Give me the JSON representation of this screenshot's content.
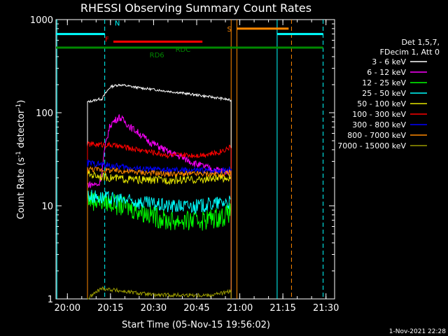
{
  "chart_data": {
    "type": "line",
    "title": "RHESSI Observing Summary Count Rates",
    "xlabel": "Start Time (05-Nov-15 19:56:02)",
    "ylabel": "Count Rate (s",
    "ylabel_sup": "-1",
    "ylabel_tail": " detector",
    "ylabel_sup2": "-1",
    "ylabel_close": ")",
    "footer": "1-Nov-2021 22:28",
    "y_scale": "log",
    "xlim": [
      "19:56:02",
      "21:33:00"
    ],
    "ylim": [
      1,
      1000
    ],
    "x_ticks": [
      "20:00",
      "20:15",
      "20:30",
      "20:45",
      "21:00",
      "21:15",
      "21:30"
    ],
    "y_ticks": [
      "1",
      "10",
      "100",
      "1000"
    ],
    "legend_header": [
      "Det 1,5,7,",
      "FDecim 1, Att 0"
    ],
    "legend_position": "right",
    "series": [
      {
        "name": "3 - 6 keV",
        "color": "#ffffff",
        "x": [
          "20:07",
          "20:11",
          "20:12",
          "20:15",
          "20:18",
          "20:25",
          "20:35",
          "20:45",
          "20:55",
          "20:57"
        ],
        "y": [
          130,
          140,
          140,
          190,
          200,
          185,
          170,
          155,
          140,
          135
        ]
      },
      {
        "name": "6 - 12 keV",
        "color": "#ff00ff",
        "x": [
          "20:07",
          "20:11",
          "20:12",
          "20:15",
          "20:18",
          "20:22",
          "20:28",
          "20:35",
          "20:45",
          "20:50",
          "20:57"
        ],
        "y": [
          17,
          17,
          22,
          75,
          90,
          70,
          50,
          38,
          28,
          25,
          23
        ]
      },
      {
        "name": "12 - 25 keV",
        "color": "#00ff00",
        "x": [
          "20:07",
          "20:15",
          "20:25",
          "20:35",
          "20:45",
          "20:55",
          "20:57"
        ],
        "y": [
          12,
          11,
          9,
          7,
          7,
          8,
          9
        ]
      },
      {
        "name": "25 - 50 keV",
        "color": "#00ffff",
        "x": [
          "20:07",
          "20:15",
          "20:25",
          "20:35",
          "20:45",
          "20:55",
          "20:57"
        ],
        "y": [
          13,
          12,
          11,
          10,
          10,
          11,
          11
        ]
      },
      {
        "name": "50 - 100 keV",
        "color": "#e6e600",
        "x": [
          "20:07",
          "20:15",
          "20:25",
          "20:35",
          "20:45",
          "20:55",
          "20:57"
        ],
        "y": [
          22,
          20,
          19,
          19,
          19,
          20,
          20
        ]
      },
      {
        "name": "100 - 300 keV",
        "color": "#ff0000",
        "x": [
          "20:07",
          "20:15",
          "20:25",
          "20:35",
          "20:45",
          "20:52",
          "20:57"
        ],
        "y": [
          46,
          45,
          40,
          35,
          35,
          37,
          43
        ]
      },
      {
        "name": "300 - 800 keV",
        "color": "#0000ff",
        "x": [
          "20:07",
          "20:15",
          "20:25",
          "20:35",
          "20:45",
          "20:55",
          "20:57"
        ],
        "y": [
          29,
          27,
          25,
          24,
          24,
          24,
          25
        ]
      },
      {
        "name": "800 - 7000 keV",
        "color": "#ff8800",
        "x": [
          "20:07",
          "20:15",
          "20:25",
          "20:35",
          "20:45",
          "20:55",
          "20:57"
        ],
        "y": [
          25,
          24,
          23,
          22,
          22,
          22,
          23
        ]
      },
      {
        "name": "7000 - 15000 keV",
        "color": "#999900",
        "x": [
          "20:07",
          "20:12",
          "20:20",
          "20:30",
          "20:40",
          "20:50",
          "20:57"
        ],
        "y": [
          1,
          1.3,
          1.2,
          1.1,
          1.1,
          1.1,
          1.2
        ]
      }
    ],
    "state_bars": [
      {
        "label": "N",
        "color": "#00ffff",
        "y": 700,
        "segments": [
          [
            "19:56:02",
            "20:13"
          ],
          [
            "21:13",
            "21:29"
          ]
        ]
      },
      {
        "label": "F",
        "color": "#ff0000",
        "y": 580,
        "segments": [
          [
            "20:16",
            "20:47"
          ]
        ]
      },
      {
        "label": "RD6",
        "color": "#008800",
        "y": 500,
        "segments": [
          [
            "19:56:02",
            "21:29"
          ]
        ]
      },
      {
        "label": "RDC",
        "color": "#008800",
        "y": 500,
        "segments": []
      },
      {
        "label": "S",
        "color": "#ff8800",
        "y": 800,
        "segments": [
          [
            "20:59",
            "21:17"
          ]
        ]
      }
    ],
    "vertical_markers": [
      {
        "time": "19:56:20",
        "color": "#00ffff",
        "style": "solid"
      },
      {
        "time": "20:13",
        "color": "#00ffff",
        "style": "dashed"
      },
      {
        "time": "20:57",
        "color": "#ff8800",
        "style": "solid"
      },
      {
        "time": "20:59",
        "color": "#ff8800",
        "style": "solid"
      },
      {
        "time": "21:13",
        "color": "#00ffff",
        "style": "solid"
      },
      {
        "time": "21:18",
        "color": "#ff8800",
        "style": "dashed"
      },
      {
        "time": "21:29",
        "color": "#00ffff",
        "style": "dashed"
      }
    ]
  }
}
